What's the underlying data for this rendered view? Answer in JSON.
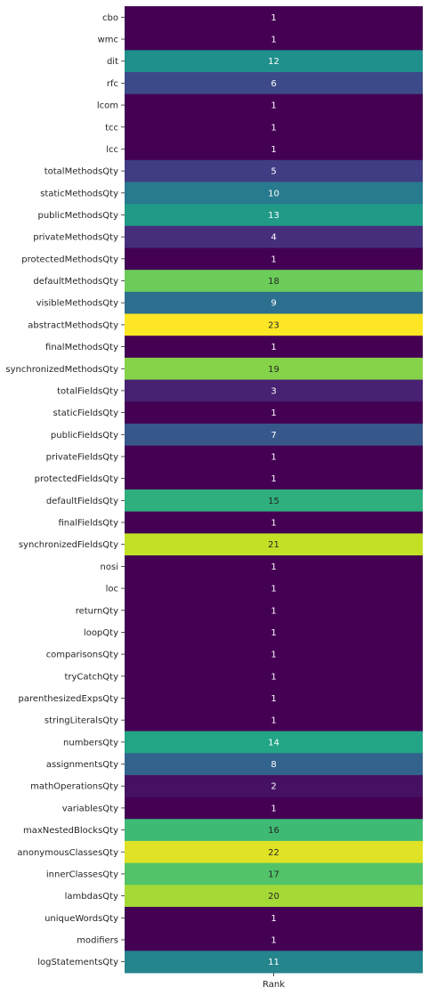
{
  "chart_data": {
    "type": "heatmap",
    "colormap": "viridis",
    "vmin": 1,
    "vmax": 23,
    "columns": [
      "Rank"
    ],
    "rows": [
      {
        "label": "cbo",
        "value": 1
      },
      {
        "label": "wmc",
        "value": 1
      },
      {
        "label": "dit",
        "value": 12
      },
      {
        "label": "rfc",
        "value": 6
      },
      {
        "label": "lcom",
        "value": 1
      },
      {
        "label": "tcc",
        "value": 1
      },
      {
        "label": "lcc",
        "value": 1
      },
      {
        "label": "totalMethodsQty",
        "value": 5
      },
      {
        "label": "staticMethodsQty",
        "value": 10
      },
      {
        "label": "publicMethodsQty",
        "value": 13
      },
      {
        "label": "privateMethodsQty",
        "value": 4
      },
      {
        "label": "protectedMethodsQty",
        "value": 1
      },
      {
        "label": "defaultMethodsQty",
        "value": 18
      },
      {
        "label": "visibleMethodsQty",
        "value": 9
      },
      {
        "label": "abstractMethodsQty",
        "value": 23
      },
      {
        "label": "finalMethodsQty",
        "value": 1
      },
      {
        "label": "synchronizedMethodsQty",
        "value": 19
      },
      {
        "label": "totalFieldsQty",
        "value": 3
      },
      {
        "label": "staticFieldsQty",
        "value": 1
      },
      {
        "label": "publicFieldsQty",
        "value": 7
      },
      {
        "label": "privateFieldsQty",
        "value": 1
      },
      {
        "label": "protectedFieldsQty",
        "value": 1
      },
      {
        "label": "defaultFieldsQty",
        "value": 15
      },
      {
        "label": "finalFieldsQty",
        "value": 1
      },
      {
        "label": "synchronizedFieldsQty",
        "value": 21
      },
      {
        "label": "nosi",
        "value": 1
      },
      {
        "label": "loc",
        "value": 1
      },
      {
        "label": "returnQty",
        "value": 1
      },
      {
        "label": "loopQty",
        "value": 1
      },
      {
        "label": "comparisonsQty",
        "value": 1
      },
      {
        "label": "tryCatchQty",
        "value": 1
      },
      {
        "label": "parenthesizedExpsQty",
        "value": 1
      },
      {
        "label": "stringLiteralsQty",
        "value": 1
      },
      {
        "label": "numbersQty",
        "value": 14
      },
      {
        "label": "assignmentsQty",
        "value": 8
      },
      {
        "label": "mathOperationsQty",
        "value": 2
      },
      {
        "label": "variablesQty",
        "value": 1
      },
      {
        "label": "maxNestedBlocksQty",
        "value": 16
      },
      {
        "label": "anonymousClassesQty",
        "value": 22
      },
      {
        "label": "innerClassesQty",
        "value": 17
      },
      {
        "label": "lambdasQty",
        "value": 20
      },
      {
        "label": "uniqueWordsQty",
        "value": 1
      },
      {
        "label": "modifiers",
        "value": 1
      },
      {
        "label": "logStatementsQty",
        "value": 11
      }
    ]
  }
}
